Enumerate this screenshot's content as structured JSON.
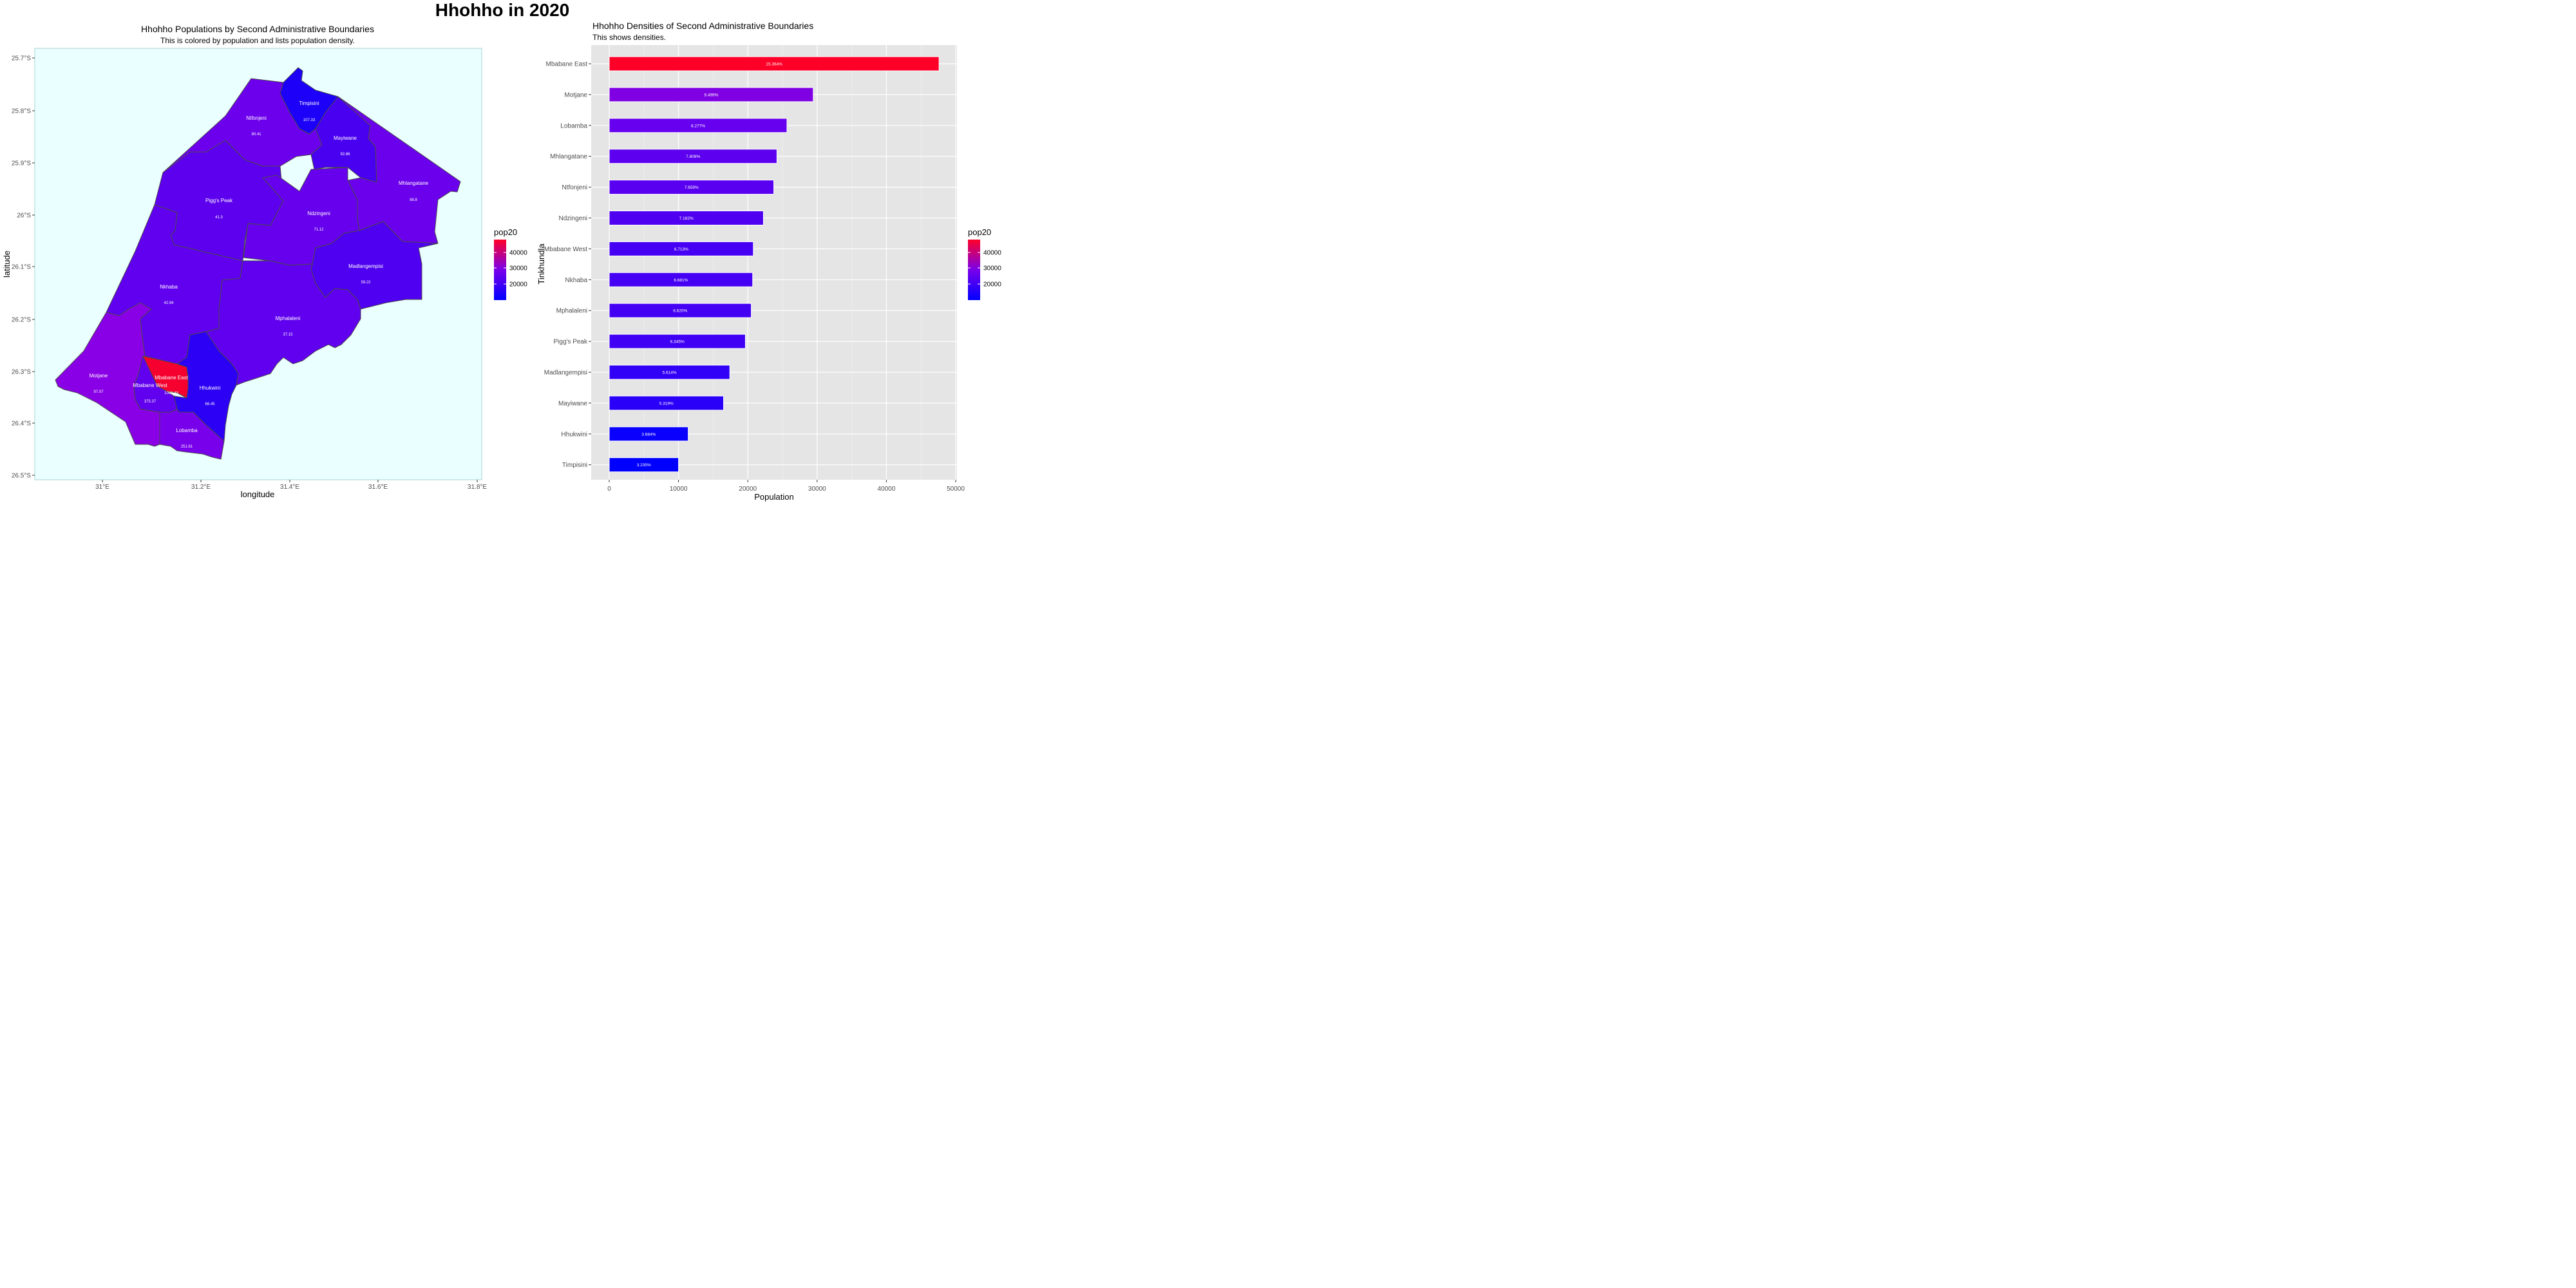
{
  "page": {
    "title": "Hhohho in 2020"
  },
  "map": {
    "title": "Hhohho Populations by Second Administrative Boundaries",
    "subtitle": "This is colored by population and lists population density.",
    "xlabel": "longitude",
    "ylabel": "latitude",
    "x_ticks": [
      "31°E",
      "31.2°E",
      "31.4°E",
      "31.6°E",
      "31.8°E"
    ],
    "y_ticks": [
      "25.7°S",
      "25.8°S",
      "25.9°S",
      "26°S",
      "26.1°S",
      "26.2°S",
      "26.3°S",
      "26.4°S",
      "26.5°S"
    ],
    "regions": [
      {
        "name": "Timpisini",
        "density": "107.33",
        "fill": "#1c00f8"
      },
      {
        "name": "Ntfonjeni",
        "density": "80.41",
        "fill": "#6c00ec"
      },
      {
        "name": "Mayiwane",
        "density": "92.86",
        "fill": "#4a00f0"
      },
      {
        "name": "Mhlangatane",
        "density": "88.8",
        "fill": "#6b00ec"
      },
      {
        "name": "Pigg's Peak",
        "density": "41.3",
        "fill": "#5d00ee"
      },
      {
        "name": "Ndzingeni",
        "density": "71.12",
        "fill": "#6600ed"
      },
      {
        "name": "Madlangempisi",
        "density": "59.22",
        "fill": "#4f00f0"
      },
      {
        "name": "Nkhaba",
        "density": "42.94",
        "fill": "#6000ee"
      },
      {
        "name": "Mphalaleni",
        "density": "37.15",
        "fill": "#6000ee"
      },
      {
        "name": "Motjane",
        "density": "97.07",
        "fill": "#8900e6"
      },
      {
        "name": "Mbabane West",
        "density": "375.37",
        "fill": "#6100ee"
      },
      {
        "name": "Mbabane East",
        "density": "1062.43",
        "fill": "#f5002f"
      },
      {
        "name": "Hhukwini",
        "density": "66.45",
        "fill": "#2b00f5"
      },
      {
        "name": "Lobamba",
        "density": "251.61",
        "fill": "#7900ea"
      }
    ]
  },
  "legend": {
    "title": "pop20",
    "labels": [
      "40000",
      "30000",
      "20000"
    ],
    "low_color": "#0000ff",
    "high_color": "#ff0028"
  },
  "bars": {
    "title": "Hhohho Densities of Second Administrative Boundaries",
    "subtitle": "This shows densities.",
    "xlabel": "Population",
    "ylabel": "Tinkhundla"
  },
  "chart_data": [
    {
      "type": "map",
      "title": "Hhohho Populations by Second Administrative Boundaries",
      "subtitle": "This is colored by population and lists population density.",
      "xlabel": "longitude",
      "ylabel": "latitude",
      "xlim": [
        30.85,
        31.82
      ],
      "ylim": [
        -26.5,
        -25.68
      ],
      "color_variable": "pop20",
      "regions": [
        "Timpisini",
        "Ntfonjeni",
        "Mayiwane",
        "Mhlangatane",
        "Pigg's Peak",
        "Ndzingeni",
        "Madlangempisi",
        "Nkhaba",
        "Mphalaleni",
        "Motjane",
        "Mbabane West",
        "Mbabane East",
        "Hhukwini",
        "Lobamba"
      ],
      "densities": [
        107.33,
        80.41,
        92.86,
        88.8,
        41.3,
        71.12,
        59.22,
        42.94,
        37.15,
        97.07,
        375.37,
        1062.43,
        66.45,
        251.61
      ]
    },
    {
      "type": "bar",
      "orientation": "horizontal",
      "title": "Hhohho Densities of Second Administrative Boundaries",
      "subtitle": "This shows densities.",
      "xlabel": "Population",
      "ylabel": "Tinkhundla",
      "xlim": [
        0,
        50000
      ],
      "x_ticks": [
        0,
        10000,
        20000,
        30000,
        40000,
        50000
      ],
      "categories": [
        "Mbabane East",
        "Motjane",
        "Lobamba",
        "Mhlangatane",
        "Ntfonjeni",
        "Ndzingeni",
        "Mbabane West",
        "Nkhaba",
        "Mphalaleni",
        "Pigg's Peak",
        "Madlangempisi",
        "Mayiwane",
        "Hhukwini",
        "Timpisini"
      ],
      "values": [
        47600,
        29450,
        25650,
        24200,
        23750,
        22250,
        20800,
        20700,
        20500,
        19650,
        17400,
        16500,
        11400,
        10000
      ],
      "labels": [
        "15.364%",
        "9.499%",
        "8.277%",
        "7.808%",
        "7.659%",
        "7.182%",
        "6.713%",
        "6.681%",
        "6.620%",
        "6.345%",
        "5.614%",
        "5.319%",
        "3.684%",
        "3.235%"
      ],
      "legend": {
        "title": "pop20",
        "labels": [
          "40000",
          "30000",
          "20000"
        ]
      }
    }
  ]
}
